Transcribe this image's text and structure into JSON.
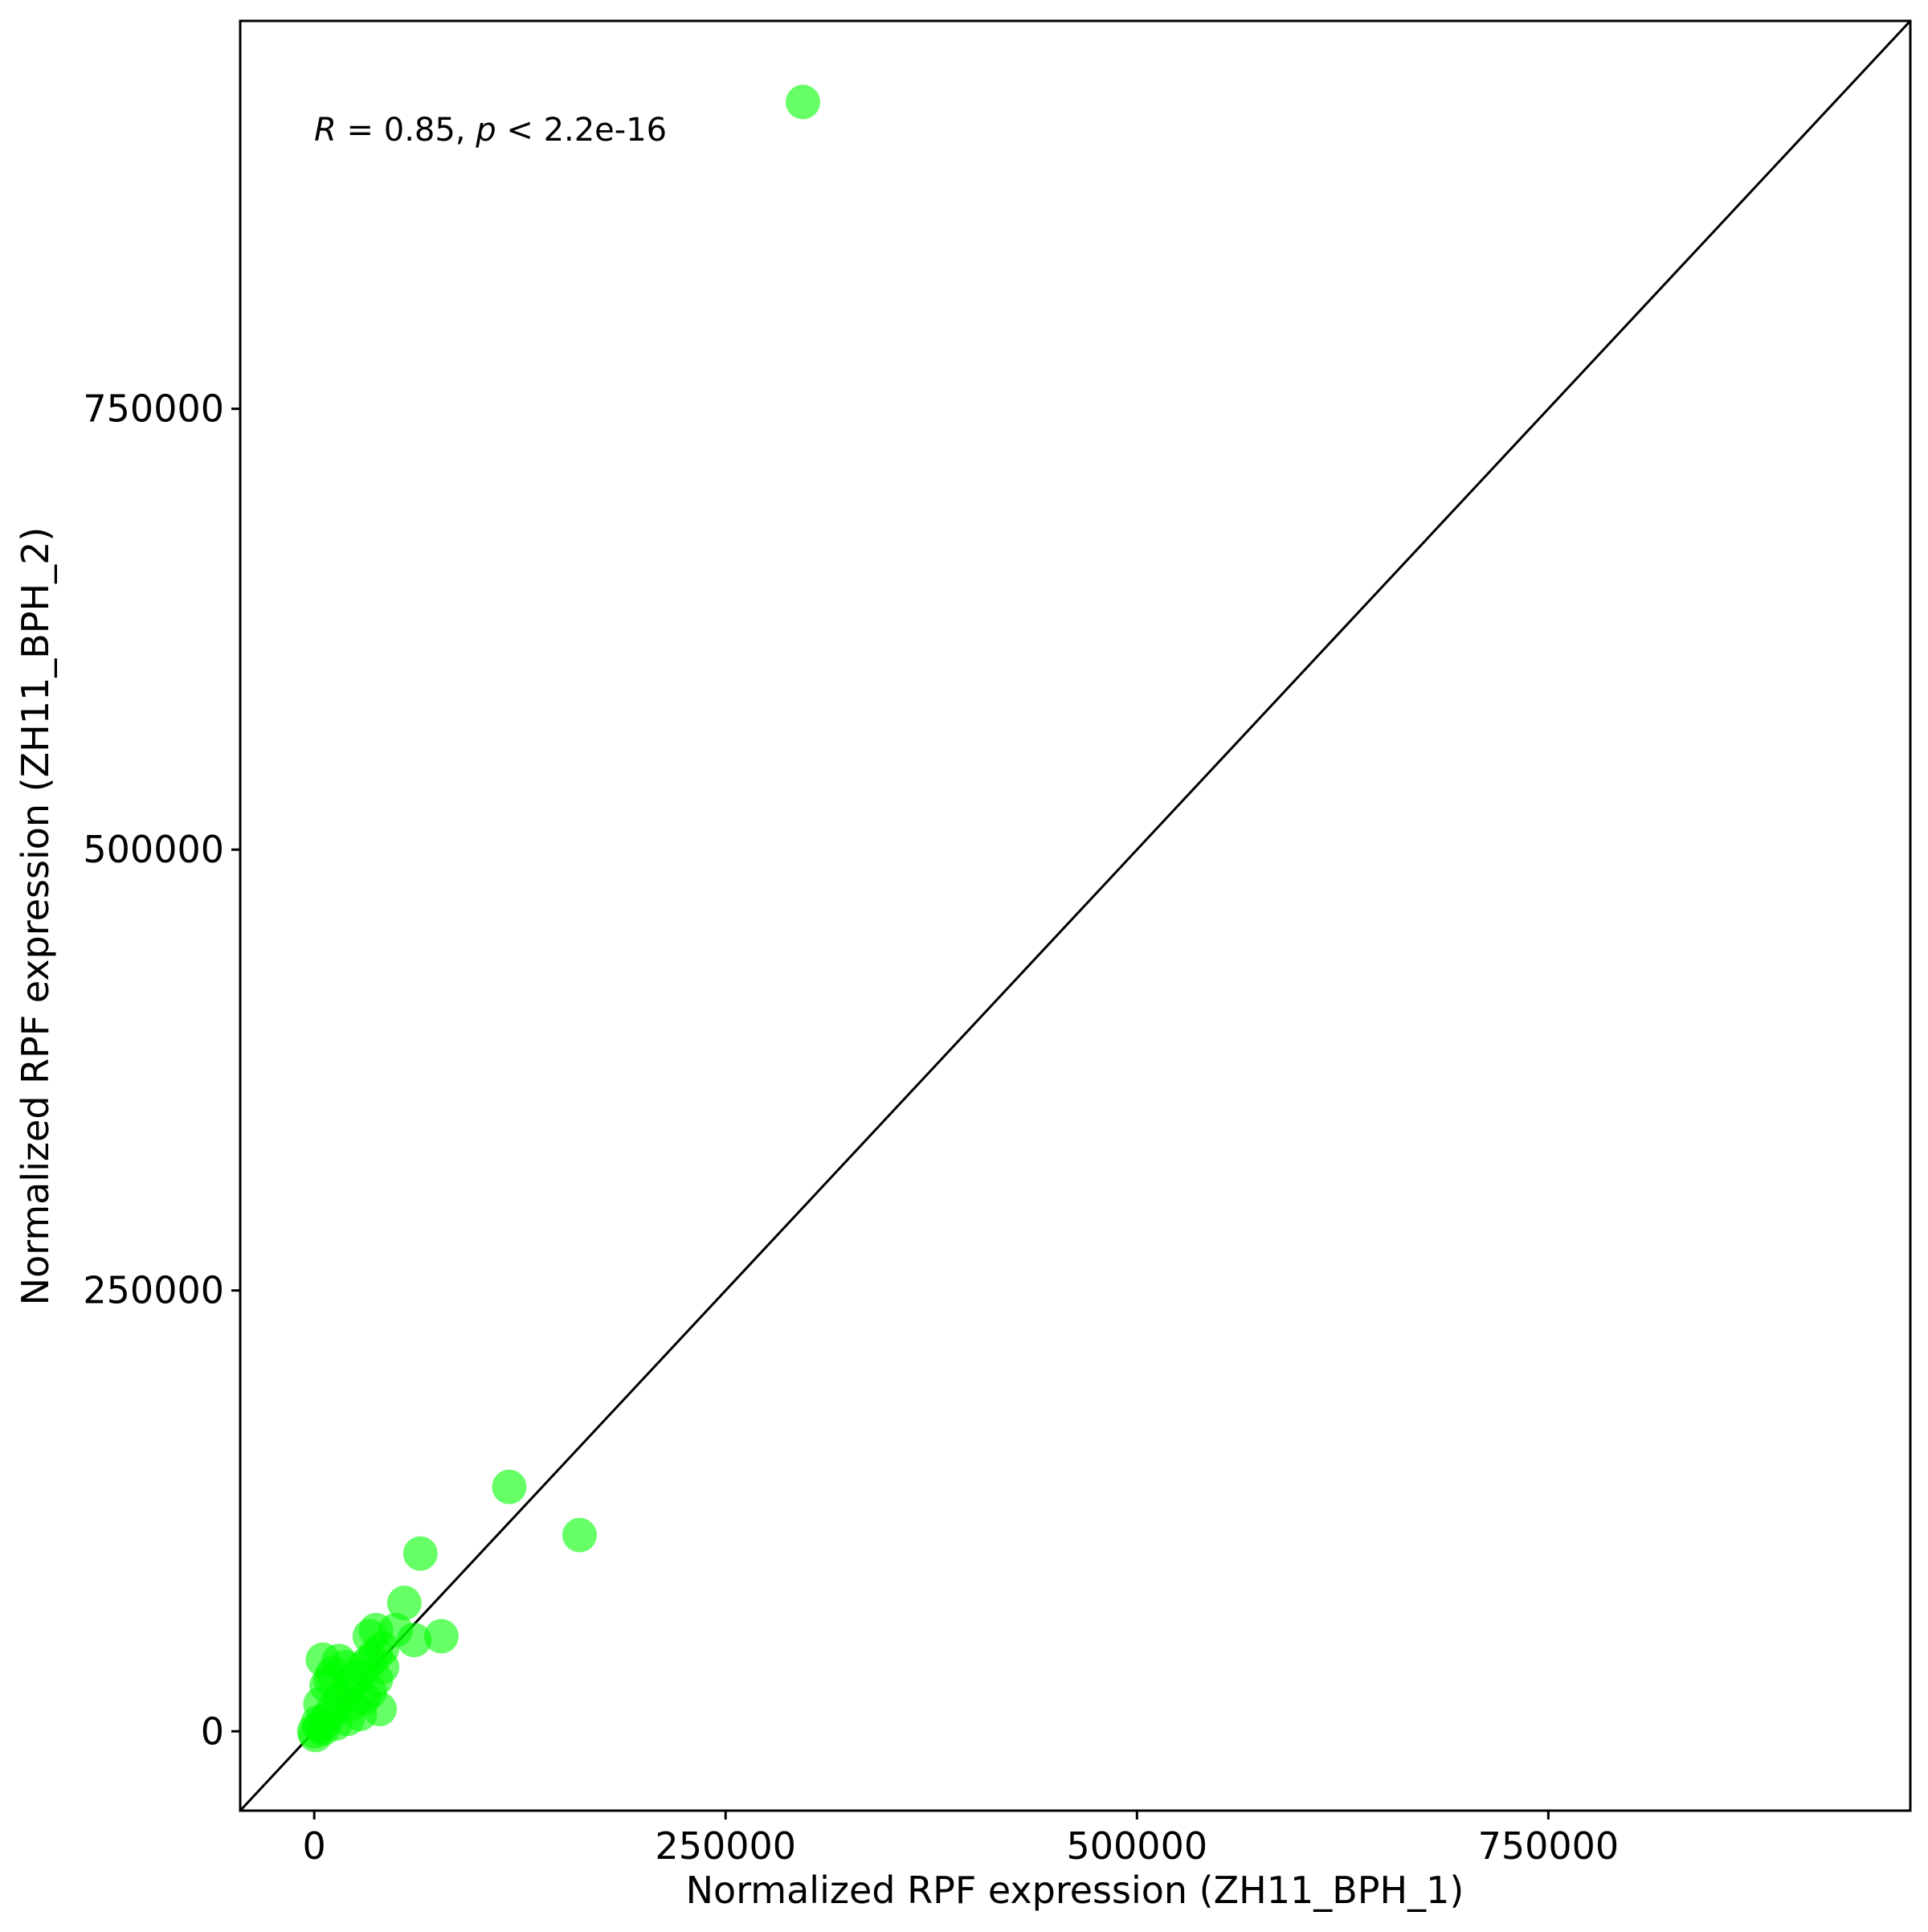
{
  "chart_data": {
    "type": "scatter",
    "xlabel": "Normalized RPF expression (ZH11_BPH_1)",
    "ylabel": "Normalized RPF expression (ZH11_BPH_2)",
    "annotation": [
      "R",
      " = 0.85, ",
      "p",
      " < 2.2e-16"
    ],
    "color": "#00ff00",
    "xlim": [
      -45000,
      970000
    ],
    "ylim": [
      -45000,
      970000
    ],
    "xticks": [
      0,
      250000,
      500000,
      750000
    ],
    "yticks": [
      0,
      250000,
      500000,
      750000
    ],
    "x": [
      297000,
      118500,
      161250,
      64500,
      54750,
      77250,
      60750,
      49500,
      37500,
      33750,
      5250,
      39750,
      27750,
      0,
      3750,
      7500,
      11250,
      15000,
      18750,
      22500,
      26250,
      30000,
      33750,
      37500,
      41250,
      7500,
      11250,
      15000,
      22500,
      30000,
      37500,
      33750,
      3750,
      9750,
      18750,
      41250,
      2250,
      5250,
      12750,
      20250,
      750
    ],
    "y": [
      924000,
      138600,
      111300,
      100800,
      72800,
      53900,
      51800,
      57400,
      57400,
      53900,
      40600,
      12600,
      9800,
      0,
      2800,
      7000,
      11900,
      16800,
      21000,
      25900,
      30800,
      36400,
      39900,
      43400,
      46900,
      25900,
      32900,
      39900,
      15400,
      18900,
      29400,
      22400,
      15400,
      29400,
      36400,
      36400,
      4900,
      1400,
      4200,
      7000,
      -2100
    ]
  }
}
